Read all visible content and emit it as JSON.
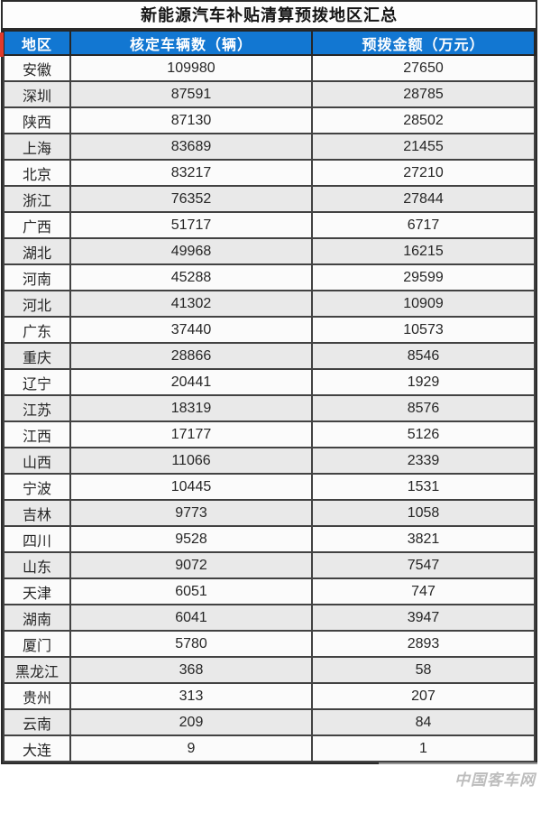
{
  "title": "新能源汽车补贴清算预拨地区汇总",
  "watermark": "中国客车网",
  "colors": {
    "header_bg": "#1277d2",
    "header_text": "#ffffff",
    "row_bg": "#fbfbfb",
    "row_alt_bg": "#e9e9e9",
    "border": "#424242",
    "accent_red": "#e03a2b"
  },
  "chart_data": {
    "type": "table",
    "title": "新能源汽车补贴清算预拨地区汇总",
    "columns": [
      "地区",
      "核定车辆数（辆）",
      "预拨金额（万元）"
    ],
    "rows": [
      [
        "安徽",
        109980,
        27650
      ],
      [
        "深圳",
        87591,
        28785
      ],
      [
        "陕西",
        87130,
        28502
      ],
      [
        "上海",
        83689,
        21455
      ],
      [
        "北京",
        83217,
        27210
      ],
      [
        "浙江",
        76352,
        27844
      ],
      [
        "广西",
        51717,
        6717
      ],
      [
        "湖北",
        49968,
        16215
      ],
      [
        "河南",
        45288,
        29599
      ],
      [
        "河北",
        41302,
        10909
      ],
      [
        "广东",
        37440,
        10573
      ],
      [
        "重庆",
        28866,
        8546
      ],
      [
        "辽宁",
        20441,
        1929
      ],
      [
        "江苏",
        18319,
        8576
      ],
      [
        "江西",
        17177,
        5126
      ],
      [
        "山西",
        11066,
        2339
      ],
      [
        "宁波",
        10445,
        1531
      ],
      [
        "吉林",
        9773,
        1058
      ],
      [
        "四川",
        9528,
        3821
      ],
      [
        "山东",
        9072,
        7547
      ],
      [
        "天津",
        6051,
        747
      ],
      [
        "湖南",
        6041,
        3947
      ],
      [
        "厦门",
        5780,
        2893
      ],
      [
        "黑龙江",
        368,
        58
      ],
      [
        "贵州",
        313,
        207
      ],
      [
        "云南",
        209,
        84
      ],
      [
        "大连",
        9,
        1
      ]
    ]
  }
}
